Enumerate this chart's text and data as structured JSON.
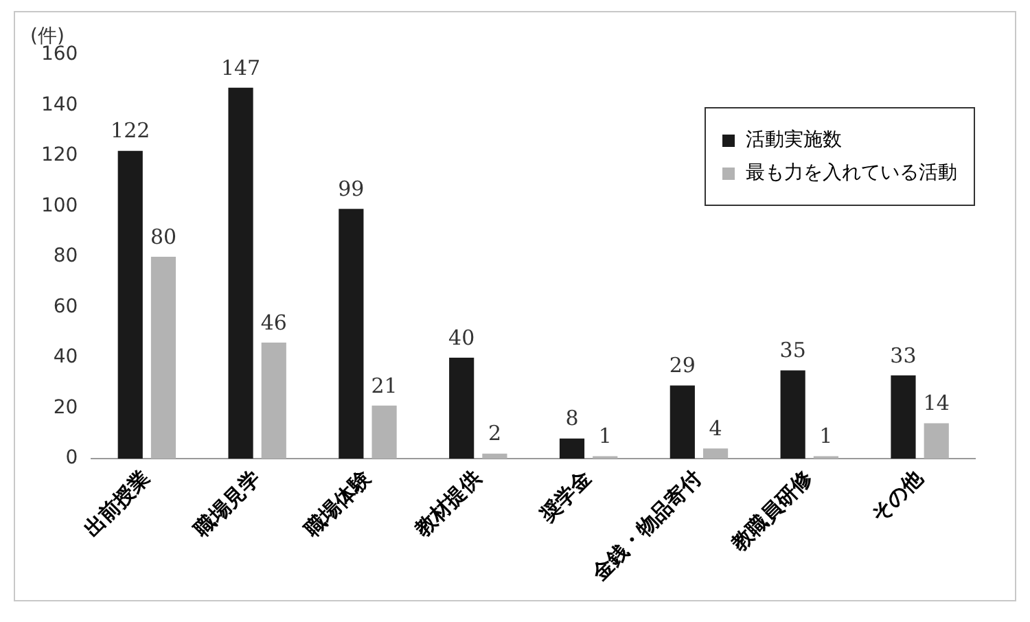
{
  "chart_data": {
    "type": "bar",
    "ylabel": "(件)",
    "categories": [
      "出前授業",
      "職場見学",
      "職場体験",
      "教材提供",
      "奨学金",
      "金銭・物品寄付",
      "教職員研修",
      "その他"
    ],
    "series": [
      {
        "name": "活動実施数",
        "color": "#1a1a1a",
        "values": [
          122,
          147,
          99,
          40,
          8,
          29,
          35,
          33
        ]
      },
      {
        "name": "最も力を入れている活動",
        "color": "#b3b3b3",
        "values": [
          80,
          46,
          21,
          2,
          1,
          4,
          1,
          14
        ]
      }
    ],
    "ylim": [
      0,
      160
    ],
    "yticks": [
      0,
      20,
      40,
      60,
      80,
      100,
      120,
      140,
      160
    ],
    "grid": false,
    "legend": "top right",
    "data_labels": true
  }
}
